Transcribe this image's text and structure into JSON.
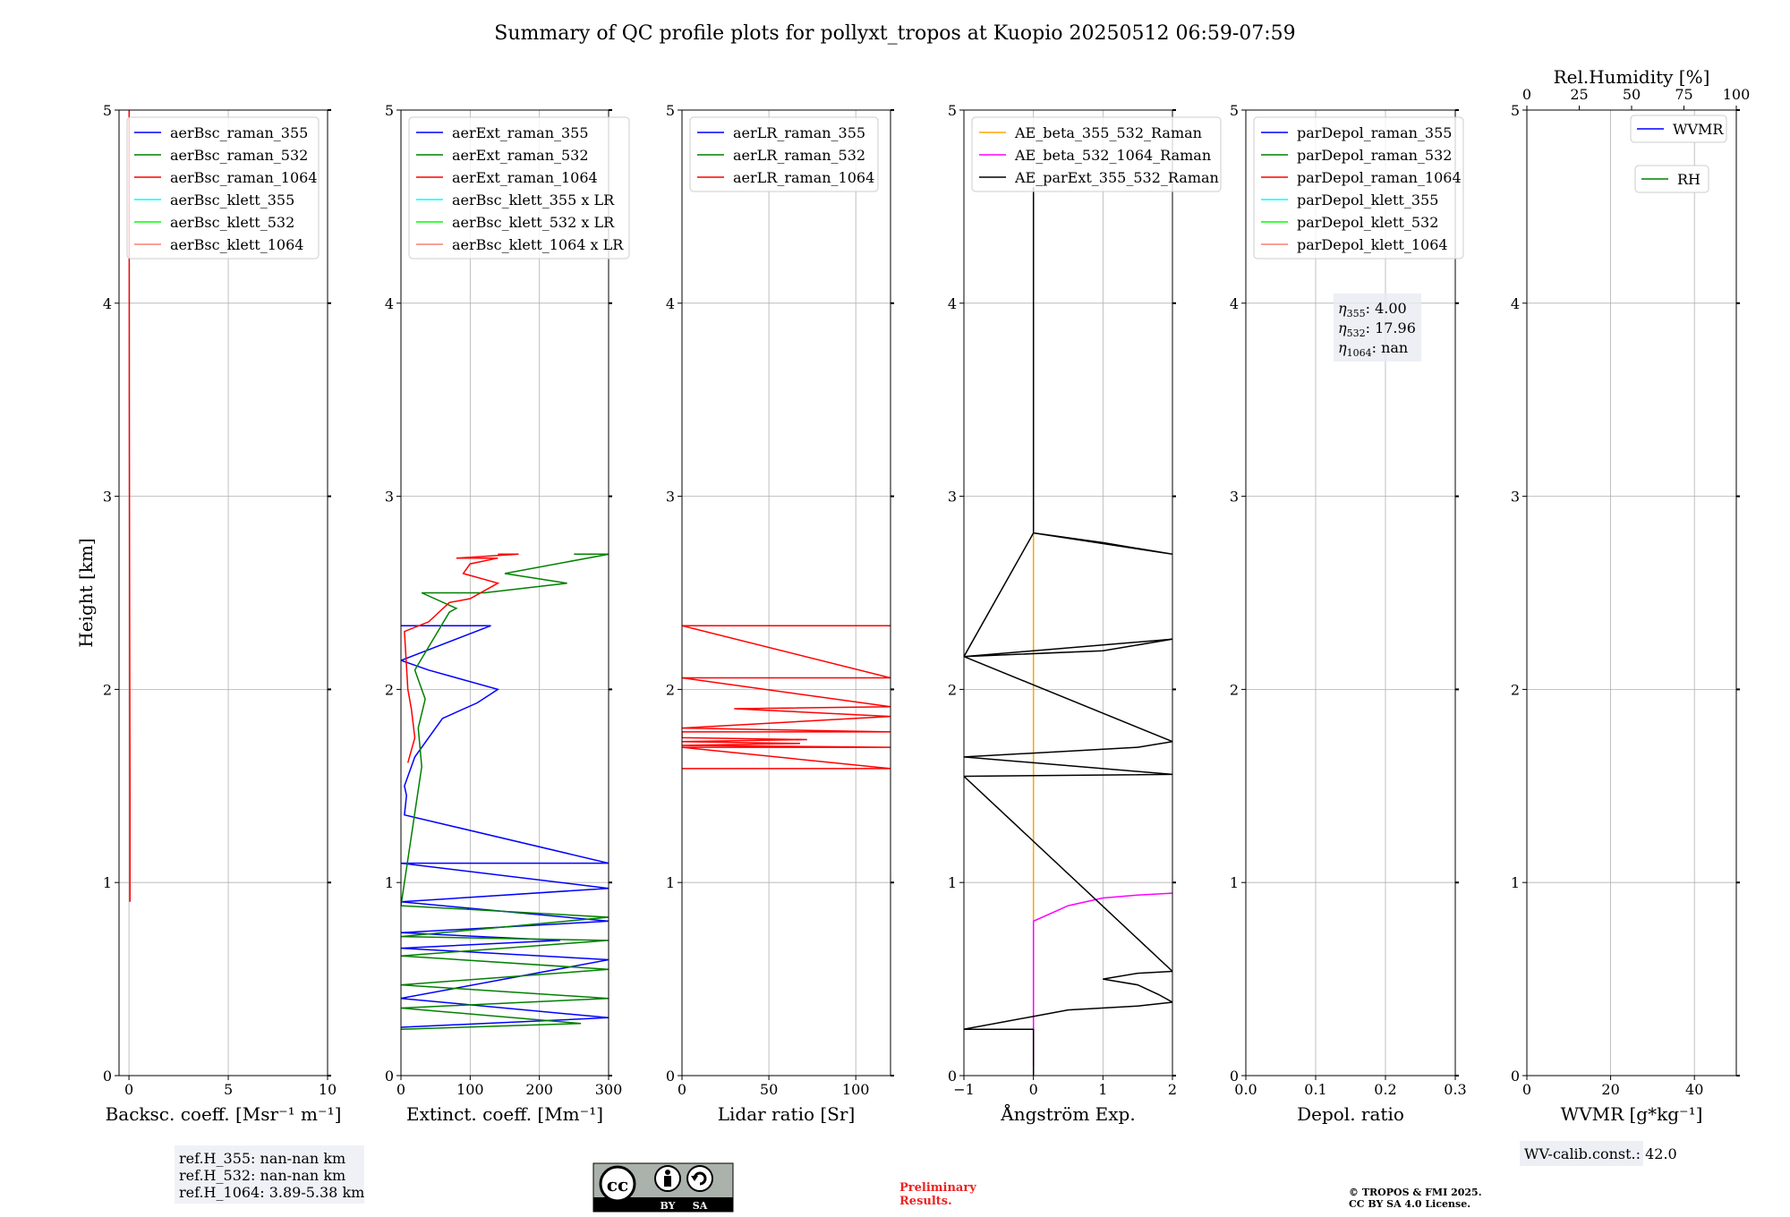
{
  "title": "Summary of QC profile plots for pollyxt_tropos at Kuopio 20250512 06:59-07:59",
  "colors": {
    "blue": "#0000ff",
    "green": "#008000",
    "red": "#ff0000",
    "cyan": "#00ffff",
    "lime": "#00ff00",
    "salmon": "#fa8072",
    "orange": "#ffa500",
    "magenta": "#ff00ff",
    "black": "#000000"
  },
  "chart_data": [
    {
      "type": "line",
      "ylabel": "Height [km]",
      "xlabel": "Backsc. coeff. [Msr⁻¹ m⁻¹]",
      "xlim": [
        -0.5,
        10
      ],
      "ylim": [
        0,
        5
      ],
      "xticks": [
        0,
        5,
        10
      ],
      "xticklabels": [
        "0",
        "5",
        "10"
      ],
      "yticks": [
        0,
        1,
        2,
        3,
        4,
        5
      ],
      "yticklabels": [
        "0",
        "1",
        "2",
        "3",
        "4",
        "5"
      ],
      "grid": true,
      "legend_position": "top-left",
      "series": [
        {
          "name": "aerBsc_raman_355",
          "color": "blue",
          "points": []
        },
        {
          "name": "aerBsc_raman_532",
          "color": "green",
          "points": []
        },
        {
          "name": "aerBsc_raman_1064",
          "color": "red",
          "points": [
            [
              0.05,
              0.9
            ],
            [
              0.05,
              1.5
            ],
            [
              0.03,
              2.5
            ],
            [
              0.02,
              3.5
            ],
            [
              0.01,
              5.0
            ]
          ]
        },
        {
          "name": "aerBsc_klett_355",
          "color": "cyan",
          "points": []
        },
        {
          "name": "aerBsc_klett_532",
          "color": "lime",
          "points": []
        },
        {
          "name": "aerBsc_klett_1064",
          "color": "salmon",
          "points": []
        }
      ],
      "info_box": [
        "ref.H_355: nan-nan km",
        "ref.H_532: nan-nan km",
        "ref.H_1064: 3.89-5.38 km"
      ]
    },
    {
      "type": "line",
      "xlabel": "Extinct. coeff. [Mm⁻¹]",
      "xlim": [
        0,
        300
      ],
      "ylim": [
        0,
        5
      ],
      "xticks": [
        0,
        100,
        200,
        300
      ],
      "xticklabels": [
        "0",
        "100",
        "200",
        "300"
      ],
      "yticks": [
        0,
        1,
        2,
        3,
        4,
        5
      ],
      "yticklabels": [
        "0",
        "1",
        "2",
        "3",
        "4",
        "5"
      ],
      "grid": true,
      "legend_position": "top-left",
      "series": [
        {
          "name": "aerExt_raman_355",
          "color": "blue",
          "points": [
            [
              0,
              0.25
            ],
            [
              300,
              0.3
            ],
            [
              0,
              0.4
            ],
            [
              300,
              0.6
            ],
            [
              0,
              0.66
            ],
            [
              230,
              0.7
            ],
            [
              0,
              0.74
            ],
            [
              300,
              0.8
            ],
            [
              0,
              0.9
            ],
            [
              300,
              0.97
            ],
            [
              0,
              1.1
            ],
            [
              300,
              1.1
            ],
            [
              5,
              1.35
            ],
            [
              8,
              1.45
            ],
            [
              5,
              1.5
            ],
            [
              20,
              1.65
            ],
            [
              50,
              1.8
            ],
            [
              60,
              1.85
            ],
            [
              110,
              1.93
            ],
            [
              140,
              2.0
            ],
            [
              40,
              2.1
            ],
            [
              0,
              2.15
            ],
            [
              130,
              2.33
            ],
            [
              0,
              2.33
            ]
          ]
        },
        {
          "name": "aerExt_raman_532",
          "color": "green",
          "points": [
            [
              0,
              0.24
            ],
            [
              260,
              0.27
            ],
            [
              0,
              0.35
            ],
            [
              300,
              0.4
            ],
            [
              0,
              0.47
            ],
            [
              300,
              0.55
            ],
            [
              0,
              0.62
            ],
            [
              300,
              0.7
            ],
            [
              0,
              0.72
            ],
            [
              300,
              0.82
            ],
            [
              0,
              0.88
            ],
            [
              30,
              1.6
            ],
            [
              25,
              1.8
            ],
            [
              35,
              1.95
            ],
            [
              20,
              2.1
            ],
            [
              70,
              2.4
            ],
            [
              80,
              2.42
            ],
            [
              30,
              2.5
            ],
            [
              120,
              2.5
            ],
            [
              240,
              2.55
            ],
            [
              150,
              2.6
            ],
            [
              300,
              2.7
            ],
            [
              250,
              2.7
            ]
          ]
        },
        {
          "name": "aerExt_raman_1064",
          "color": "red",
          "points": [
            [
              10,
              1.62
            ],
            [
              20,
              1.75
            ],
            [
              15,
              1.9
            ],
            [
              10,
              2.0
            ],
            [
              5,
              2.3
            ],
            [
              40,
              2.35
            ],
            [
              70,
              2.45
            ],
            [
              100,
              2.47
            ],
            [
              140,
              2.55
            ],
            [
              90,
              2.6
            ],
            [
              100,
              2.65
            ],
            [
              140,
              2.68
            ],
            [
              80,
              2.68
            ],
            [
              170,
              2.7
            ],
            [
              140,
              2.7
            ]
          ]
        },
        {
          "name": "aerBsc_klett_355 x LR",
          "color": "cyan",
          "points": []
        },
        {
          "name": "aerBsc_klett_532 x LR",
          "color": "lime",
          "points": []
        },
        {
          "name": "aerBsc_klett_1064 x LR",
          "color": "salmon",
          "points": []
        }
      ]
    },
    {
      "type": "line",
      "xlabel": "Lidar ratio [Sr]",
      "xlim": [
        0,
        120
      ],
      "ylim": [
        0,
        5
      ],
      "xticks": [
        0,
        50,
        100
      ],
      "xticklabels": [
        "0",
        "50",
        "100"
      ],
      "yticks": [
        0,
        1,
        2,
        3,
        4,
        5
      ],
      "yticklabels": [
        "0",
        "1",
        "2",
        "3",
        "4",
        "5"
      ],
      "grid": true,
      "legend_position": "top-left",
      "series": [
        {
          "name": "aerLR_raman_355",
          "color": "blue",
          "points": []
        },
        {
          "name": "aerLR_raman_532",
          "color": "green",
          "points": []
        },
        {
          "name": "aerLR_raman_1064",
          "color": "red",
          "points": [
            [
              0,
              1.59
            ],
            [
              120,
              1.59
            ],
            [
              0,
              1.7
            ],
            [
              120,
              1.7
            ],
            [
              0,
              1.71
            ],
            [
              68,
              1.72
            ],
            [
              0,
              1.73
            ],
            [
              72,
              1.74
            ],
            [
              0,
              1.75
            ],
            [
              0,
              1.78
            ],
            [
              120,
              1.78
            ],
            [
              0,
              1.8
            ],
            [
              100,
              1.85
            ],
            [
              120,
              1.86
            ],
            [
              30,
              1.9
            ],
            [
              120,
              1.91
            ],
            [
              0,
              2.06
            ],
            [
              120,
              2.06
            ],
            [
              0,
              2.33
            ],
            [
              120,
              2.33
            ]
          ]
        }
      ]
    },
    {
      "type": "line",
      "xlabel": "Ångström Exp.",
      "xlim": [
        -1,
        2
      ],
      "ylim": [
        0,
        5
      ],
      "xticks": [
        -1,
        0,
        1,
        2
      ],
      "xticklabels": [
        "−1",
        "0",
        "1",
        "2"
      ],
      "yticks": [
        0,
        1,
        2,
        3,
        4,
        5
      ],
      "yticklabels": [
        "0",
        "1",
        "2",
        "3",
        "4",
        "5"
      ],
      "grid": true,
      "legend_position": "top-left",
      "series": [
        {
          "name": "AE_beta_355_532_Raman",
          "color": "orange",
          "points": [
            [
              0,
              0.8
            ],
            [
              0,
              2.81
            ]
          ]
        },
        {
          "name": "AE_beta_532_1064_Raman",
          "color": "magenta",
          "points": [
            [
              0,
              0.05
            ],
            [
              0,
              0.8
            ],
            [
              0.5,
              0.88
            ],
            [
              1.0,
              0.92
            ],
            [
              1.5,
              0.935
            ],
            [
              2.0,
              0.945
            ]
          ]
        },
        {
          "name": "AE_parExt_355_532_Raman",
          "color": "black",
          "points": [
            [
              0,
              0.0
            ],
            [
              0,
              0.24
            ],
            [
              -1,
              0.24
            ],
            [
              0.05,
              0.31
            ],
            [
              0.5,
              0.34
            ],
            [
              1.5,
              0.36
            ],
            [
              2,
              0.38
            ],
            [
              1.8,
              0.42
            ],
            [
              1.5,
              0.47
            ],
            [
              1.0,
              0.5
            ],
            [
              1.5,
              0.53
            ],
            [
              2,
              0.54
            ],
            [
              -1,
              1.55
            ],
            [
              2,
              1.56
            ],
            [
              -1,
              1.65
            ],
            [
              1.5,
              1.7
            ],
            [
              2,
              1.73
            ],
            [
              -1,
              2.17
            ],
            [
              1.0,
              2.2
            ],
            [
              2,
              2.26
            ],
            [
              -1,
              2.17
            ],
            [
              0,
              2.81
            ],
            [
              1.0,
              2.76
            ],
            [
              2,
              2.7
            ],
            [
              0,
              2.81
            ],
            [
              0,
              4.6
            ]
          ]
        }
      ]
    },
    {
      "type": "line",
      "xlabel": "Depol. ratio",
      "xlim": [
        0,
        0.3
      ],
      "ylim": [
        0,
        5
      ],
      "xticks": [
        0,
        0.1,
        0.2,
        0.3
      ],
      "xticklabels": [
        "0.0",
        "0.1",
        "0.2",
        "0.3"
      ],
      "yticks": [
        0,
        1,
        2,
        3,
        4,
        5
      ],
      "yticklabels": [
        "0",
        "1",
        "2",
        "3",
        "4",
        "5"
      ],
      "grid": true,
      "legend_position": "top-left",
      "series": [
        {
          "name": "parDepol_raman_355",
          "color": "blue",
          "points": []
        },
        {
          "name": "parDepol_raman_532",
          "color": "green",
          "points": []
        },
        {
          "name": "parDepol_raman_1064",
          "color": "red",
          "points": []
        },
        {
          "name": "parDepol_klett_355",
          "color": "cyan",
          "points": []
        },
        {
          "name": "parDepol_klett_532",
          "color": "lime",
          "points": []
        },
        {
          "name": "parDepol_klett_1064",
          "color": "salmon",
          "points": []
        }
      ],
      "info_box": [
        {
          "sym": "η",
          "sub": "355",
          "text": ": 4.00"
        },
        {
          "sym": "η",
          "sub": "532",
          "text": ": 17.96"
        },
        {
          "sym": "η",
          "sub": "1064",
          "text": ": nan"
        }
      ]
    },
    {
      "type": "line",
      "xlabel": "WVMR [g*kg⁻¹]",
      "top_xlabel": "Rel.Humidity [%]",
      "xlim": [
        0,
        50
      ],
      "ylim": [
        0,
        5
      ],
      "xticks": [
        0,
        20,
        40
      ],
      "xticklabels": [
        "0",
        "20",
        "40"
      ],
      "top_xlim": [
        0,
        100
      ],
      "top_xticks": [
        0,
        25,
        50,
        75,
        100
      ],
      "top_xticklabels": [
        "0",
        "25",
        "50",
        "75",
        "100"
      ],
      "yticks": [
        0,
        1,
        2,
        3,
        4,
        5
      ],
      "yticklabels": [
        "0",
        "1",
        "2",
        "3",
        "4",
        "5"
      ],
      "grid": true,
      "legend_position": "top-right",
      "series": [
        {
          "name": "WVMR",
          "color": "blue",
          "points": []
        },
        {
          "name": "RH",
          "color": "green",
          "points": []
        }
      ],
      "info_box": [
        "WV-calib.const.: 42.0"
      ]
    }
  ],
  "footer": {
    "preliminary": [
      "Preliminary",
      "Results."
    ],
    "copyright": [
      "© TROPOS & FMI 2025.",
      "CC BY SA 4.0 License."
    ],
    "cc_by": "BY",
    "cc_sa": "SA"
  }
}
